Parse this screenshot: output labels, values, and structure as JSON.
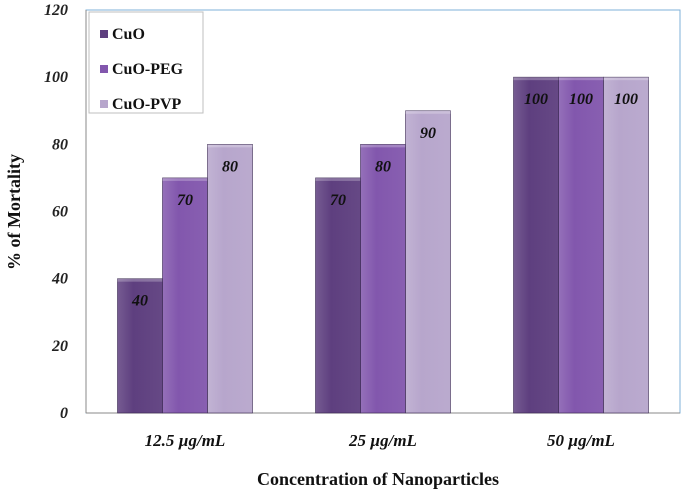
{
  "chart_data": {
    "type": "bar",
    "categories": [
      "12.5 µg/mL",
      "25 µg/mL",
      "50 µg/mL"
    ],
    "series": [
      {
        "name": "CuO",
        "values": [
          40,
          70,
          100
        ],
        "color": "#5e3f7f"
      },
      {
        "name": "CuO-PEG",
        "values": [
          70,
          80,
          100
        ],
        "color": "#8257ad"
      },
      {
        "name": "CuO-PVP",
        "values": [
          80,
          90,
          100
        ],
        "color": "#b7a6cc"
      }
    ],
    "data_labels": [
      [
        "40",
        "70",
        "100"
      ],
      [
        "70",
        "80",
        "100"
      ],
      [
        "80",
        "90",
        "100"
      ]
    ],
    "xlabel": "Concentration of Nanoparticles",
    "ylabel": "% of Mortality",
    "ylim": [
      0,
      120
    ],
    "yticks": [
      "0",
      "20",
      "40",
      "60",
      "80",
      "100",
      "120"
    ],
    "legend_position": "top-left",
    "grid": false,
    "plot_border_color": "#7fb2d8"
  }
}
